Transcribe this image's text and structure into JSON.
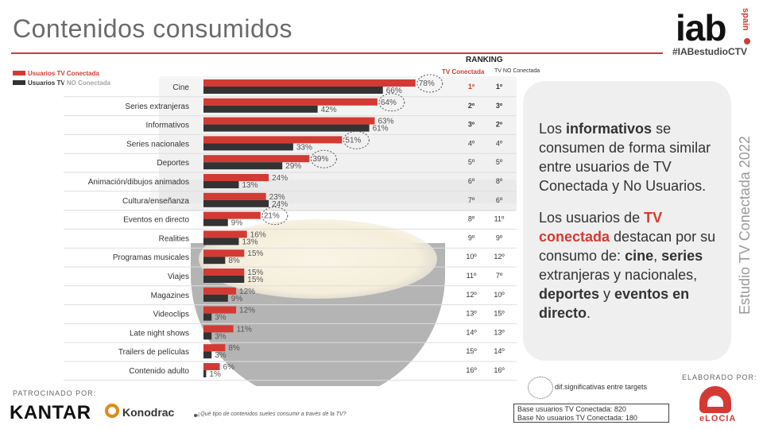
{
  "header": {
    "title": "Contenidos consumidos"
  },
  "logo": {
    "brand": "iab",
    "country": "spain",
    "hashtag": "#IABestudioCTV"
  },
  "legend": {
    "connected": "Usuarios TV Conectada",
    "not_connected": "Usuarios TV NO Conectada"
  },
  "colors": {
    "connected": "#d43a34",
    "not_connected": "#333333"
  },
  "ranking": {
    "title": "RANKING",
    "col_connected": "TV Conectada",
    "col_not_connected": "TV NO Conectada"
  },
  "chart_data": {
    "type": "bar",
    "orientation": "horizontal",
    "title": "Contenidos consumidos",
    "xlim": [
      0,
      100
    ],
    "categories": [
      "Cine",
      "Series extranjeras",
      "Informativos",
      "Series nacionales",
      "Deportes",
      "Animación/dibujos animados",
      "Cultura/enseñanza",
      "Eventos en directo",
      "Realities",
      "Programas musicales",
      "Viajes",
      "Magazines",
      "Videoclips",
      "Late night shows",
      "Trailers de películas",
      "Contenido adulto"
    ],
    "series": [
      {
        "name": "Usuarios TV Conectada",
        "values": [
          78,
          64,
          63,
          51,
          39,
          24,
          23,
          21,
          16,
          15,
          15,
          12,
          12,
          11,
          8,
          6
        ]
      },
      {
        "name": "Usuarios TV NO Conectada",
        "values": [
          66,
          42,
          61,
          33,
          29,
          13,
          24,
          9,
          13,
          8,
          15,
          9,
          3,
          3,
          3,
          1
        ]
      }
    ],
    "significant_connected": [
      true,
      true,
      false,
      true,
      true,
      false,
      false,
      true,
      false,
      false,
      false,
      false,
      false,
      false,
      false,
      false
    ],
    "rank_connected": [
      "1º",
      "2º",
      "3º",
      "4º",
      "5º",
      "6º",
      "7º",
      "8º",
      "9º",
      "10º",
      "11º",
      "12º",
      "13º",
      "14º",
      "15º",
      "16º"
    ],
    "rank_not_connected": [
      "1º",
      "3º",
      "2º",
      "4º",
      "5º",
      "8º",
      "6º",
      "11º",
      "9º",
      "12º",
      "7º",
      "10º",
      "15º",
      "13º",
      "14º",
      "16º"
    ],
    "rank_bold_rows": [
      0,
      1,
      2
    ]
  },
  "card": {
    "p1_pre": "Los ",
    "p1_bold": "informativos",
    "p1_post": " se consumen de forma similar entre usuarios de TV Conectada y No Usuarios.",
    "p2_pre": "Los usuarios de ",
    "p2_red": "TV conectada",
    "p2_mid": " destacan por su consumo de: ",
    "p2_b1": "cine",
    "p2_s1": ", ",
    "p2_b2": "series",
    "p2_s2": " extranjeras y nacionales, ",
    "p2_b3": "deportes",
    "p2_s3": " y ",
    "p2_b4": "eventos en directo",
    "p2_end": "."
  },
  "side_label": "Estudio TV Conectada 2022",
  "note": "dif.significativas entre targets",
  "base": {
    "line1": "Base usuarios TV Conectada: 820",
    "line2": "Base No usuarios TV Conectada: 180"
  },
  "footer": {
    "sponsor_label": "PATROCINADO POR:",
    "kantar": "KANTAR",
    "konodrac": "Konodrac",
    "question": "¿Qué tipo de contenidos sueles consumir a través de la TV?",
    "elaborado": "ELABORADO POR:",
    "elocia": "eLOCIA"
  }
}
